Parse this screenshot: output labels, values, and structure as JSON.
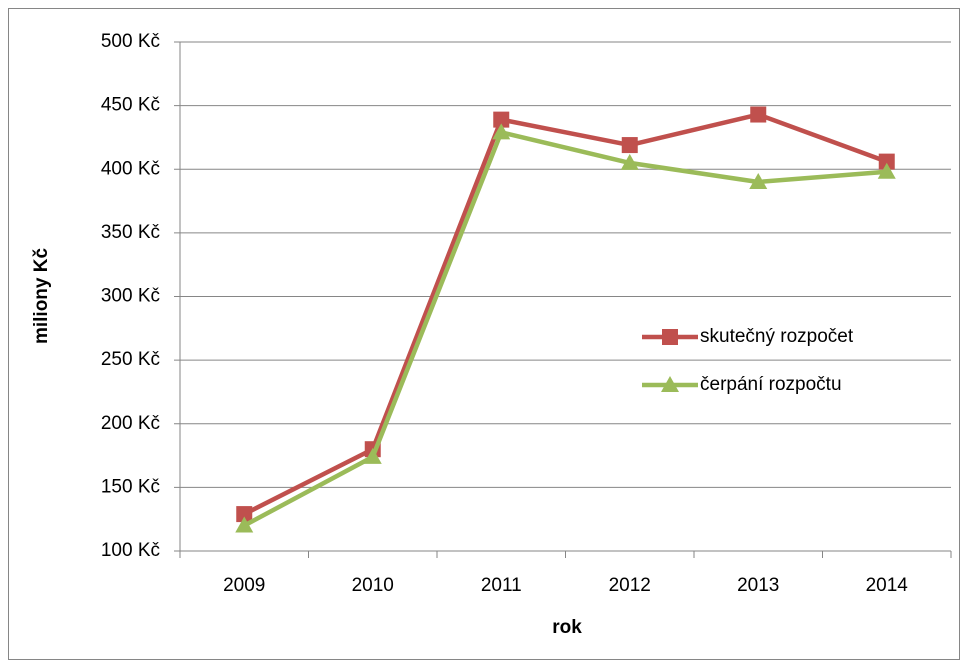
{
  "chart_data": {
    "type": "line",
    "x_label": "rok",
    "y_label": "miliony Kč",
    "categories": [
      "2009",
      "2010",
      "2011",
      "2012",
      "2013",
      "2014"
    ],
    "series": [
      {
        "name": "skutečný rozpočet",
        "color": "#c0504d",
        "marker": "square",
        "values": [
          129,
          180,
          439,
          419,
          443,
          406
        ]
      },
      {
        "name": "čerpání rozpočtu",
        "color": "#9bbb59",
        "marker": "triangle",
        "values": [
          120,
          174,
          429,
          405,
          390,
          398
        ]
      }
    ],
    "ylim": [
      100,
      500
    ],
    "yticks": [
      {
        "value": 100,
        "label": "100 Kč"
      },
      {
        "value": 150,
        "label": "150 Kč"
      },
      {
        "value": 200,
        "label": "200 Kč"
      },
      {
        "value": 250,
        "label": "250 Kč"
      },
      {
        "value": 300,
        "label": "300 Kč"
      },
      {
        "value": 350,
        "label": "350 Kč"
      },
      {
        "value": 400,
        "label": "400 Kč"
      },
      {
        "value": 450,
        "label": "450 Kč"
      },
      {
        "value": 500,
        "label": "500 Kč"
      }
    ],
    "grid": true,
    "legend": "right"
  }
}
